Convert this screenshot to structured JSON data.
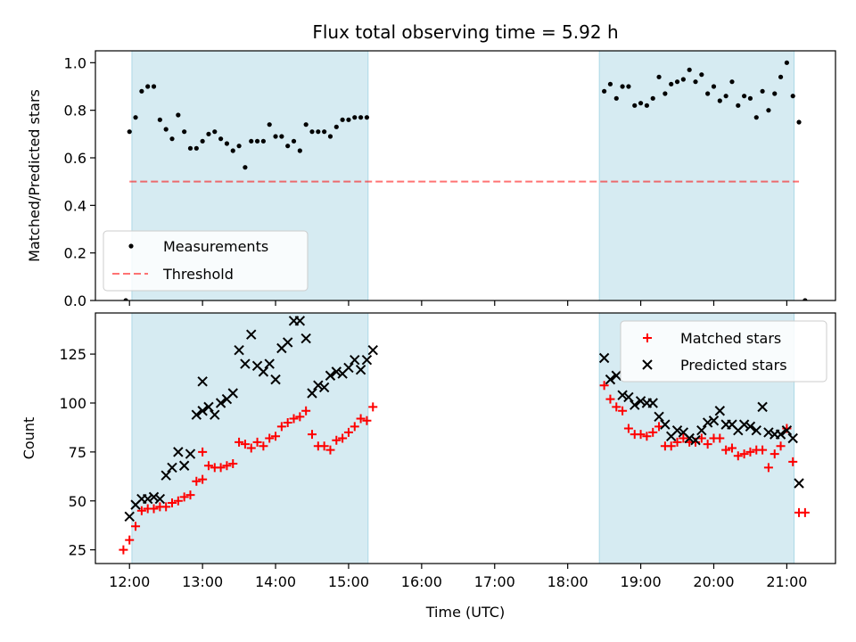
{
  "figure": {
    "title": "Flux total observing time = 5.92 h",
    "xlabel": "Time (UTC)"
  },
  "colors": {
    "shade": "#add8e6",
    "threshold": "#ff0000",
    "matched": "#ff0000",
    "predicted": "#000000",
    "measurement": "#000000"
  },
  "chart_data": [
    {
      "type": "scatter",
      "ylabel": "Matched/Predicted stars",
      "ylim": [
        0,
        1.05
      ],
      "xlim": [
        "11:32",
        "21:40"
      ],
      "y_ticks": [
        "0.0",
        "0.2",
        "0.4",
        "0.6",
        "0.8",
        "1.0"
      ],
      "x_ticks": [
        "12:00",
        "13:00",
        "14:00",
        "15:00",
        "16:00",
        "17:00",
        "18:00",
        "19:00",
        "20:00",
        "21:00"
      ],
      "shaded_intervals": [
        [
          "12:02",
          "15:16"
        ],
        [
          "18:26",
          "21:06"
        ]
      ],
      "threshold": {
        "name": "Threshold",
        "value": 0.5,
        "x": [
          "12:00",
          "21:10"
        ]
      },
      "legend": {
        "placement": "lower-left",
        "entries": [
          "Measurements",
          "Threshold"
        ]
      },
      "series": [
        {
          "name": "Measurements",
          "marker": "dot",
          "points": [
            [
              "11:57",
              0.0
            ],
            [
              "12:00",
              0.71
            ],
            [
              "12:05",
              0.77
            ],
            [
              "12:10",
              0.88
            ],
            [
              "12:15",
              0.9
            ],
            [
              "12:20",
              0.9
            ],
            [
              "12:25",
              0.76
            ],
            [
              "12:30",
              0.72
            ],
            [
              "12:35",
              0.68
            ],
            [
              "12:40",
              0.78
            ],
            [
              "12:45",
              0.71
            ],
            [
              "12:50",
              0.64
            ],
            [
              "12:55",
              0.64
            ],
            [
              "13:00",
              0.67
            ],
            [
              "13:05",
              0.7
            ],
            [
              "13:10",
              0.71
            ],
            [
              "13:15",
              0.68
            ],
            [
              "13:20",
              0.66
            ],
            [
              "13:25",
              0.63
            ],
            [
              "13:30",
              0.65
            ],
            [
              "13:35",
              0.56
            ],
            [
              "13:40",
              0.67
            ],
            [
              "13:45",
              0.67
            ],
            [
              "13:50",
              0.67
            ],
            [
              "13:55",
              0.74
            ],
            [
              "14:00",
              0.69
            ],
            [
              "14:05",
              0.69
            ],
            [
              "14:10",
              0.65
            ],
            [
              "14:15",
              0.67
            ],
            [
              "14:20",
              0.63
            ],
            [
              "14:25",
              0.74
            ],
            [
              "14:30",
              0.71
            ],
            [
              "14:35",
              0.71
            ],
            [
              "14:40",
              0.71
            ],
            [
              "14:45",
              0.69
            ],
            [
              "14:50",
              0.73
            ],
            [
              "14:55",
              0.76
            ],
            [
              "15:00",
              0.76
            ],
            [
              "15:05",
              0.77
            ],
            [
              "15:10",
              0.77
            ],
            [
              "15:15",
              0.77
            ],
            [
              "18:30",
              0.88
            ],
            [
              "18:35",
              0.91
            ],
            [
              "18:40",
              0.85
            ],
            [
              "18:45",
              0.9
            ],
            [
              "18:50",
              0.9
            ],
            [
              "18:55",
              0.82
            ],
            [
              "19:00",
              0.83
            ],
            [
              "19:05",
              0.82
            ],
            [
              "19:10",
              0.85
            ],
            [
              "19:15",
              0.94
            ],
            [
              "19:20",
              0.87
            ],
            [
              "19:25",
              0.91
            ],
            [
              "19:30",
              0.92
            ],
            [
              "19:35",
              0.93
            ],
            [
              "19:40",
              0.97
            ],
            [
              "19:45",
              0.92
            ],
            [
              "19:50",
              0.95
            ],
            [
              "19:55",
              0.87
            ],
            [
              "20:00",
              0.9
            ],
            [
              "20:05",
              0.84
            ],
            [
              "20:10",
              0.86
            ],
            [
              "20:15",
              0.92
            ],
            [
              "20:20",
              0.82
            ],
            [
              "20:25",
              0.86
            ],
            [
              "20:30",
              0.85
            ],
            [
              "20:35",
              0.77
            ],
            [
              "20:40",
              0.88
            ],
            [
              "20:45",
              0.8
            ],
            [
              "20:50",
              0.87
            ],
            [
              "20:55",
              0.94
            ],
            [
              "21:00",
              1.0
            ],
            [
              "21:05",
              0.86
            ],
            [
              "21:10",
              0.75
            ],
            [
              "21:15",
              0.0
            ]
          ]
        }
      ]
    },
    {
      "type": "scatter",
      "ylabel": "Count",
      "ylim": [
        18,
        146
      ],
      "xlim": [
        "11:32",
        "21:40"
      ],
      "y_ticks": [
        "25",
        "50",
        "75",
        "100",
        "125"
      ],
      "x_ticks": [
        "12:00",
        "13:00",
        "14:00",
        "15:00",
        "16:00",
        "17:00",
        "18:00",
        "19:00",
        "20:00",
        "21:00"
      ],
      "x_tick_labels": [
        "12:00",
        "13:00",
        "14:00",
        "15:00",
        "16:00",
        "17:00",
        "18:00",
        "19:00",
        "20:00",
        "21:00"
      ],
      "shaded_intervals": [
        [
          "12:02",
          "15:16"
        ],
        [
          "18:26",
          "21:06"
        ]
      ],
      "legend": {
        "placement": "upper-right",
        "entries": [
          "Matched stars",
          "Predicted stars"
        ]
      },
      "series": [
        {
          "name": "Matched stars",
          "marker": "plus",
          "points": [
            [
              "11:55",
              25
            ],
            [
              "12:00",
              30
            ],
            [
              "12:05",
              37
            ],
            [
              "12:10",
              45
            ],
            [
              "12:15",
              46
            ],
            [
              "12:20",
              46
            ],
            [
              "12:25",
              47
            ],
            [
              "12:30",
              47
            ],
            [
              "12:35",
              49
            ],
            [
              "12:40",
              50
            ],
            [
              "12:45",
              52
            ],
            [
              "12:50",
              53
            ],
            [
              "12:55",
              60
            ],
            [
              "13:00",
              61
            ],
            [
              "13:00",
              75
            ],
            [
              "13:05",
              68
            ],
            [
              "13:10",
              67
            ],
            [
              "13:15",
              67
            ],
            [
              "13:20",
              68
            ],
            [
              "13:25",
              69
            ],
            [
              "13:30",
              80
            ],
            [
              "13:35",
              79
            ],
            [
              "13:40",
              77
            ],
            [
              "13:45",
              80
            ],
            [
              "13:50",
              78
            ],
            [
              "13:55",
              82
            ],
            [
              "14:00",
              83
            ],
            [
              "14:05",
              88
            ],
            [
              "14:10",
              90
            ],
            [
              "14:15",
              92
            ],
            [
              "14:20",
              93
            ],
            [
              "14:25",
              96
            ],
            [
              "14:30",
              84
            ],
            [
              "14:35",
              78
            ],
            [
              "14:40",
              78
            ],
            [
              "14:45",
              76
            ],
            [
              "14:50",
              81
            ],
            [
              "14:55",
              82
            ],
            [
              "15:00",
              85
            ],
            [
              "15:05",
              88
            ],
            [
              "15:10",
              92
            ],
            [
              "15:15",
              91
            ],
            [
              "15:20",
              98
            ],
            [
              "18:30",
              109
            ],
            [
              "18:35",
              102
            ],
            [
              "18:40",
              98
            ],
            [
              "18:45",
              96
            ],
            [
              "18:50",
              87
            ],
            [
              "18:55",
              84
            ],
            [
              "19:00",
              84
            ],
            [
              "19:05",
              83
            ],
            [
              "19:10",
              85
            ],
            [
              "19:15",
              88
            ],
            [
              "19:20",
              78
            ],
            [
              "19:25",
              78
            ],
            [
              "19:30",
              80
            ],
            [
              "19:35",
              82
            ],
            [
              "19:40",
              80
            ],
            [
              "19:45",
              80
            ],
            [
              "19:50",
              82
            ],
            [
              "19:55",
              79
            ],
            [
              "20:00",
              82
            ],
            [
              "20:05",
              82
            ],
            [
              "20:10",
              76
            ],
            [
              "20:15",
              77
            ],
            [
              "20:20",
              73
            ],
            [
              "20:25",
              74
            ],
            [
              "20:30",
              75
            ],
            [
              "20:35",
              76
            ],
            [
              "20:40",
              76
            ],
            [
              "20:45",
              67
            ],
            [
              "20:50",
              74
            ],
            [
              "20:55",
              78
            ],
            [
              "21:00",
              87
            ],
            [
              "21:05",
              70
            ],
            [
              "21:10",
              44
            ],
            [
              "21:15",
              44
            ]
          ]
        },
        {
          "name": "Predicted stars",
          "marker": "cross",
          "points": [
            [
              "12:00",
              42
            ],
            [
              "12:05",
              48
            ],
            [
              "12:10",
              51
            ],
            [
              "12:15",
              51
            ],
            [
              "12:20",
              52
            ],
            [
              "12:25",
              51
            ],
            [
              "12:30",
              63
            ],
            [
              "12:35",
              67
            ],
            [
              "12:40",
              75
            ],
            [
              "12:45",
              68
            ],
            [
              "12:50",
              74
            ],
            [
              "12:55",
              94
            ],
            [
              "13:00",
              96
            ],
            [
              "13:00",
              111
            ],
            [
              "13:05",
              98
            ],
            [
              "13:10",
              94
            ],
            [
              "13:15",
              100
            ],
            [
              "13:20",
              102
            ],
            [
              "13:25",
              105
            ],
            [
              "13:30",
              127
            ],
            [
              "13:35",
              120
            ],
            [
              "13:40",
              135
            ],
            [
              "13:45",
              119
            ],
            [
              "13:50",
              116
            ],
            [
              "13:55",
              120
            ],
            [
              "14:00",
              112
            ],
            [
              "14:05",
              128
            ],
            [
              "14:10",
              131
            ],
            [
              "14:15",
              142
            ],
            [
              "14:20",
              142
            ],
            [
              "14:25",
              133
            ],
            [
              "14:30",
              105
            ],
            [
              "14:35",
              109
            ],
            [
              "14:40",
              108
            ],
            [
              "14:45",
              114
            ],
            [
              "14:50",
              116
            ],
            [
              "14:55",
              115
            ],
            [
              "15:00",
              118
            ],
            [
              "15:05",
              122
            ],
            [
              "15:10",
              117
            ],
            [
              "15:15",
              122
            ],
            [
              "15:20",
              127
            ],
            [
              "18:30",
              123
            ],
            [
              "18:35",
              112
            ],
            [
              "18:40",
              114
            ],
            [
              "18:45",
              104
            ],
            [
              "18:50",
              103
            ],
            [
              "18:55",
              99
            ],
            [
              "19:00",
              101
            ],
            [
              "19:05",
              100
            ],
            [
              "19:10",
              100
            ],
            [
              "19:15",
              93
            ],
            [
              "19:20",
              89
            ],
            [
              "19:25",
              83
            ],
            [
              "19:30",
              86
            ],
            [
              "19:35",
              85
            ],
            [
              "19:40",
              82
            ],
            [
              "19:45",
              81
            ],
            [
              "19:50",
              86
            ],
            [
              "19:55",
              90
            ],
            [
              "20:00",
              91
            ],
            [
              "20:05",
              96
            ],
            [
              "20:10",
              89
            ],
            [
              "20:15",
              89
            ],
            [
              "20:20",
              86
            ],
            [
              "20:25",
              89
            ],
            [
              "20:30",
              88
            ],
            [
              "20:35",
              86
            ],
            [
              "20:40",
              98
            ],
            [
              "20:45",
              85
            ],
            [
              "20:50",
              84
            ],
            [
              "20:55",
              84
            ],
            [
              "21:00",
              86
            ],
            [
              "21:05",
              82
            ],
            [
              "21:10",
              59
            ]
          ]
        }
      ]
    }
  ]
}
